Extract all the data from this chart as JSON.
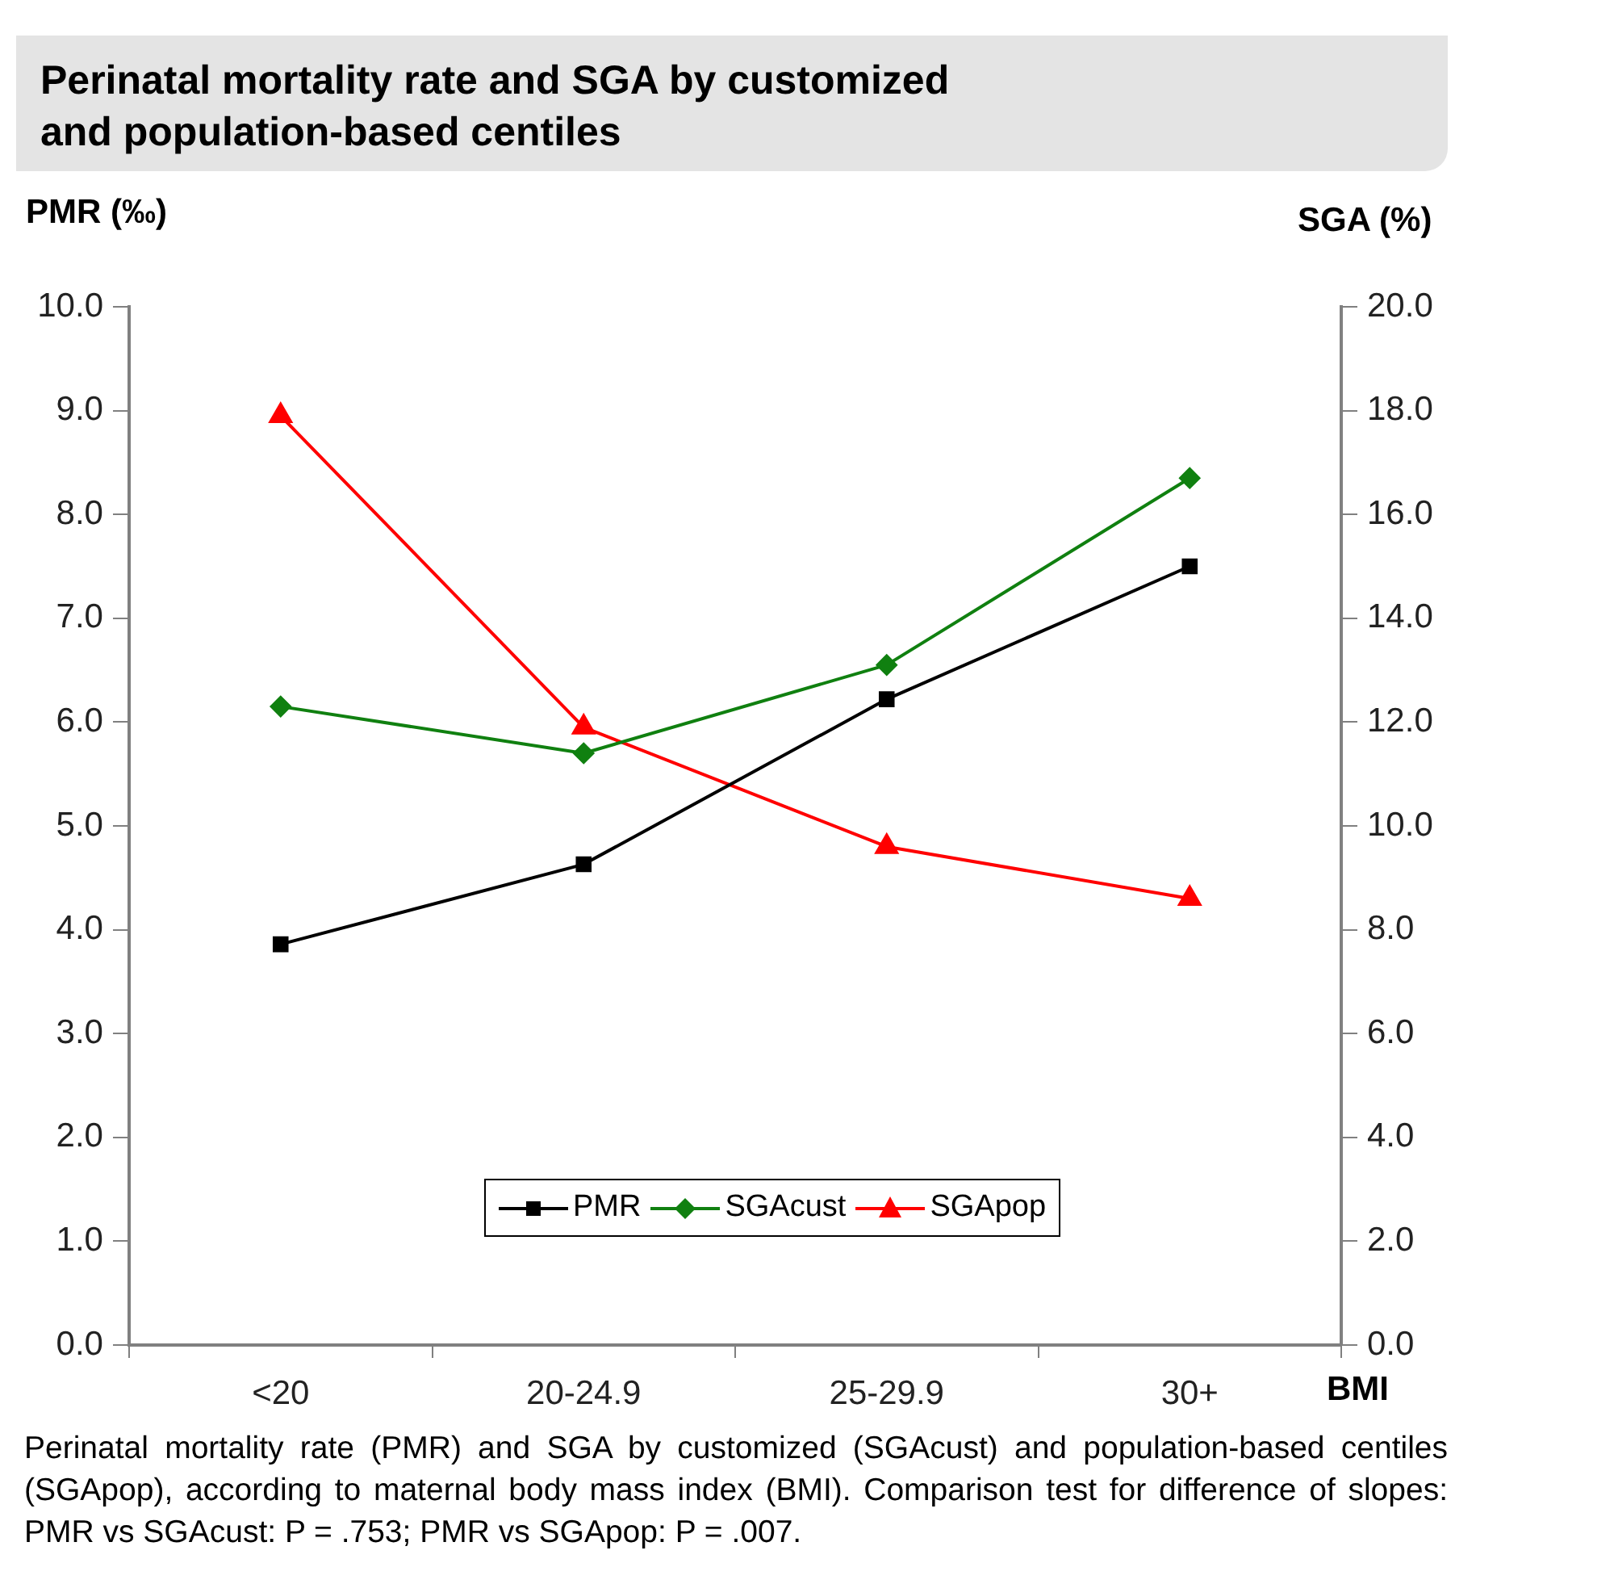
{
  "chart_data": {
    "type": "line",
    "title": "Perinatal mortality rate and SGA by customized and population-based centiles",
    "ylabel": "PMR (‰)",
    "y2label": "SGA (%)",
    "xlabel": "BMI",
    "categories": [
      "<20",
      "20-24.9",
      "25-29.9",
      "30+"
    ],
    "series": [
      {
        "name": "PMR",
        "color": "#000000",
        "marker": "square",
        "values": [
          3.86,
          4.63,
          6.22,
          7.5
        ]
      },
      {
        "name": "SGAcust",
        "color": "#108010",
        "marker": "diamond",
        "axis": "y2",
        "values": [
          12.3,
          11.4,
          13.1,
          16.7
        ]
      },
      {
        "name": "SGApop",
        "color": "#ff0000",
        "marker": "triangle",
        "axis": "y2",
        "values": [
          17.9,
          11.9,
          9.6,
          8.6
        ]
      }
    ],
    "ylim": [
      0,
      10
    ],
    "yticks": [
      {
        "value": 0,
        "label": "0.0"
      },
      {
        "value": 1,
        "label": "1.0"
      },
      {
        "value": 2,
        "label": "2.0"
      },
      {
        "value": 3,
        "label": "3.0"
      },
      {
        "value": 4,
        "label": "4.0"
      },
      {
        "value": 5,
        "label": "5.0"
      },
      {
        "value": 6,
        "label": "6.0"
      },
      {
        "value": 7,
        "label": "7.0"
      },
      {
        "value": 8,
        "label": "8.0"
      },
      {
        "value": 9,
        "label": "9.0"
      },
      {
        "value": 10,
        "label": "10.0"
      }
    ],
    "y2lim": [
      0,
      20
    ],
    "y2ticks": [
      {
        "value": 0,
        "label": "0.0"
      },
      {
        "value": 2,
        "label": "2.0"
      },
      {
        "value": 4,
        "label": "4.0"
      },
      {
        "value": 6,
        "label": "6.0"
      },
      {
        "value": 8,
        "label": "8.0"
      },
      {
        "value": 10,
        "label": "10.0"
      },
      {
        "value": 12,
        "label": "12.0"
      },
      {
        "value": 14,
        "label": "14.0"
      },
      {
        "value": 16,
        "label": "16.0"
      },
      {
        "value": 18,
        "label": "18.0"
      },
      {
        "value": 20,
        "label": "20.0"
      }
    ],
    "grid": false,
    "legend": "bottom",
    "annotations": [
      "Perinatal mortality rate (PMR) and SGA by customized (SGAcust) and population-based centiles (SGApop), according to maternal body mass index (BMI). Comparison test for difference of slopes: PMR vs SGAcust: P = .753; PMR vs SGApop: P = .007."
    ]
  }
}
